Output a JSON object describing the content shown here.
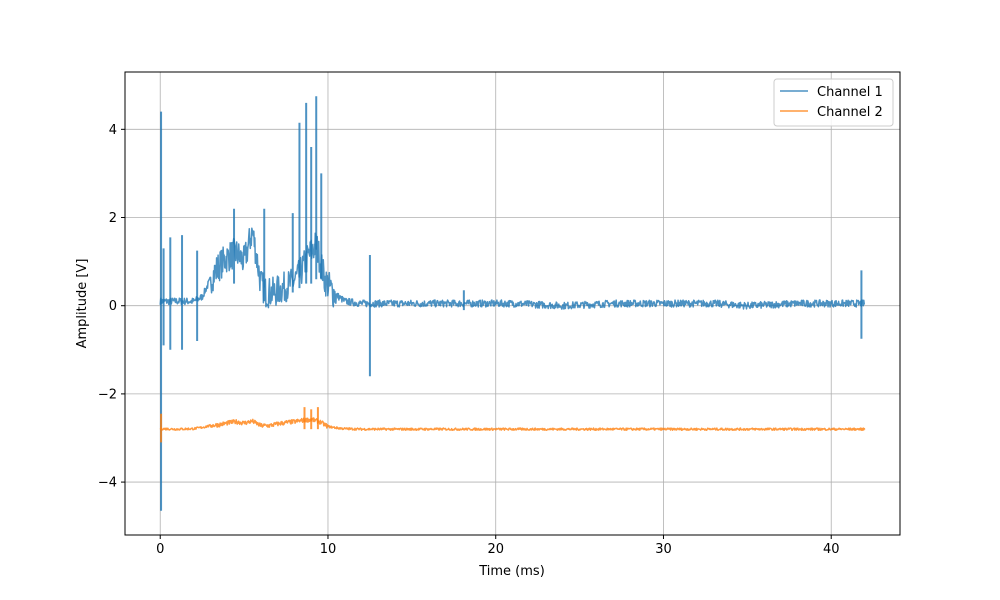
{
  "chart_data": {
    "type": "line",
    "title": "",
    "xlabel": "Time (ms)",
    "ylabel": "Amplitude [V]",
    "xlim": [
      -2.1,
      44.1
    ],
    "ylim": [
      -5.2,
      5.3
    ],
    "xticks": [
      0,
      10,
      20,
      30,
      40
    ],
    "xtick_labels": [
      "0",
      "10",
      "20",
      "30",
      "40"
    ],
    "yticks": [
      -4,
      -2,
      0,
      2,
      4
    ],
    "ytick_labels": [
      "−4",
      "−2",
      "0",
      "2",
      "4"
    ],
    "grid": true,
    "legend_position": "top-right",
    "series": [
      {
        "name": "Channel 1",
        "color": "#1f77b4",
        "x": [
          0,
          0.5,
          1,
          1.5,
          2,
          2.5,
          3,
          3.5,
          4,
          4.5,
          5,
          5.5,
          6,
          6.3,
          6.8,
          7.3,
          7.8,
          8.3,
          8.8,
          9.3,
          9.8,
          10.3,
          11,
          12,
          13,
          15,
          18,
          21,
          24,
          27,
          30,
          33,
          35,
          38,
          40,
          42
        ],
        "y": [
          0.1,
          0.1,
          0.1,
          0.1,
          0.1,
          0.2,
          0.6,
          0.9,
          1.1,
          1.2,
          1.0,
          1.7,
          0.5,
          0.3,
          0.3,
          0.4,
          0.5,
          0.7,
          1.1,
          1.4,
          0.6,
          0.3,
          0.1,
          0.05,
          0.05,
          0.05,
          0.05,
          0.05,
          0.0,
          0.05,
          0.05,
          0.05,
          0.0,
          0.05,
          0.05,
          0.05
        ],
        "noise_amplitude": 0.08,
        "spikes": [
          {
            "x": 0.05,
            "high": 4.4,
            "low": -4.65
          },
          {
            "x": 0.2,
            "high": 1.3,
            "low": -0.9
          },
          {
            "x": 0.6,
            "high": 1.55,
            "low": -1.0
          },
          {
            "x": 1.3,
            "high": 1.6,
            "low": -1.0
          },
          {
            "x": 2.2,
            "high": 1.25,
            "low": -0.8
          },
          {
            "x": 4.4,
            "high": 2.2,
            "low": 0.5
          },
          {
            "x": 6.2,
            "high": 2.2,
            "low": 0.1
          },
          {
            "x": 7.9,
            "high": 2.1,
            "low": 0.3
          },
          {
            "x": 8.3,
            "high": 4.15,
            "low": 0.4
          },
          {
            "x": 8.7,
            "high": 4.6,
            "low": 0.5
          },
          {
            "x": 9.0,
            "high": 3.6,
            "low": 0.5
          },
          {
            "x": 9.3,
            "high": 4.75,
            "low": 0.6
          },
          {
            "x": 9.6,
            "high": 3.0,
            "low": 0.6
          },
          {
            "x": 12.5,
            "high": 1.15,
            "low": -1.6
          },
          {
            "x": 18.1,
            "high": 0.35,
            "low": -0.1
          },
          {
            "x": 41.8,
            "high": 0.8,
            "low": -0.75
          }
        ]
      },
      {
        "name": "Channel 2",
        "color": "#ff7f0e",
        "x": [
          0,
          1,
          2,
          2.5,
          3,
          3.5,
          4,
          4.5,
          5,
          5.5,
          6,
          6.5,
          7,
          7.5,
          8,
          8.5,
          9,
          9.5,
          10,
          10.5,
          11,
          12,
          15,
          20,
          25,
          30,
          35,
          40,
          42
        ],
        "y": [
          -2.79,
          -2.8,
          -2.79,
          -2.76,
          -2.72,
          -2.7,
          -2.66,
          -2.63,
          -2.66,
          -2.62,
          -2.72,
          -2.72,
          -2.68,
          -2.65,
          -2.63,
          -2.6,
          -2.58,
          -2.63,
          -2.74,
          -2.77,
          -2.79,
          -2.8,
          -2.8,
          -2.8,
          -2.8,
          -2.8,
          -2.8,
          -2.8,
          -2.8
        ],
        "noise_amplitude": 0.025,
        "spikes": [
          {
            "x": 0.05,
            "high": -2.45,
            "low": -3.1
          },
          {
            "x": 8.6,
            "high": -2.3,
            "low": -2.8
          },
          {
            "x": 9.0,
            "high": -2.35,
            "low": -2.8
          },
          {
            "x": 9.4,
            "high": -2.3,
            "low": -2.8
          }
        ]
      }
    ]
  }
}
